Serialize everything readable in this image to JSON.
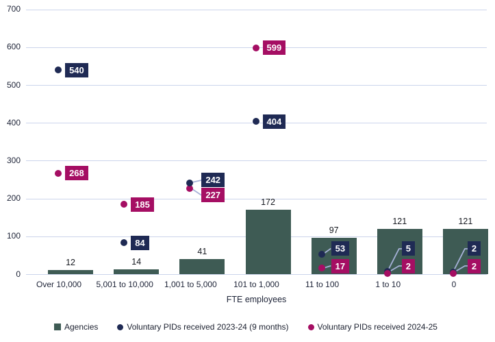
{
  "chart_data": {
    "type": "bar",
    "title": "",
    "categories": [
      "Over 10,000",
      "5,001 to 10,000",
      "1,001 to 5,000",
      "101 to 1,000",
      "11 to 100",
      "1 to 10",
      "0"
    ],
    "series": [
      {
        "name": "Agencies",
        "type": "bar",
        "color": "#3E5B54",
        "values": [
          12,
          14,
          41,
          172,
          97,
          121,
          121
        ]
      },
      {
        "name": "Voluntary PIDs received 2023-24 (9 months)",
        "type": "scatter",
        "color": "#1F2A54",
        "values": [
          540,
          84,
          242,
          404,
          53,
          5,
          2
        ]
      },
      {
        "name": "Voluntary PIDs received 2024-25",
        "type": "scatter",
        "color": "#A50E63",
        "values": [
          268,
          185,
          227,
          599,
          17,
          2,
          2
        ]
      }
    ],
    "xlabel": "FTE employees",
    "ylabel": "",
    "ylim": [
      0,
      700
    ],
    "ytick_step": 100,
    "yticks": [
      0,
      100,
      200,
      300,
      400,
      500,
      600,
      700
    ],
    "grid": true,
    "legend_position": "bottom",
    "colors": {
      "grid": "#CBD4EB",
      "leader": "#A7B2D9",
      "axis_text": "#1C2236",
      "bar_label_text": "#15181F",
      "point_label_text": "#FFFFFF",
      "background": "#FFFFFF"
    }
  }
}
